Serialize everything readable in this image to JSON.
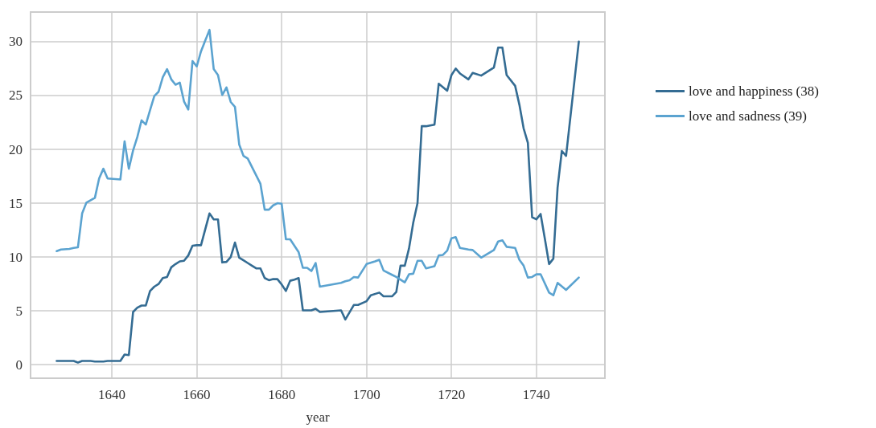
{
  "chart_data": {
    "type": "line",
    "xlabel": "year",
    "xlim": [
      1620.85,
      1756.15
    ],
    "xticks": [
      1640,
      1660,
      1680,
      1700,
      1720,
      1740
    ],
    "ylim": [
      -1.25,
      32.75
    ],
    "yticks": [
      0,
      5,
      10,
      15,
      20,
      25,
      30
    ],
    "grid": true,
    "legend": "top right",
    "line_style": "solid",
    "marker": "none",
    "series": [
      {
        "name": "love and happiness (38)",
        "color": "#346c93",
        "x": [
          1627,
          1631,
          1632,
          1633,
          1635,
          1636,
          1638,
          1639,
          1642,
          1643,
          1644,
          1645,
          1646,
          1647,
          1648,
          1649,
          1650,
          1651,
          1652,
          1653,
          1654,
          1655,
          1656,
          1657,
          1658,
          1659,
          1660,
          1661,
          1663,
          1664,
          1665,
          1666,
          1667,
          1668,
          1669,
          1670,
          1671,
          1672,
          1673,
          1674,
          1675,
          1676,
          1677,
          1678,
          1679,
          1680,
          1681,
          1682,
          1683,
          1684,
          1685,
          1686,
          1687,
          1688,
          1689,
          1694,
          1695,
          1697,
          1698,
          1700,
          1701,
          1703,
          1704,
          1706,
          1707,
          1708,
          1709,
          1710,
          1711,
          1712,
          1713,
          1714,
          1716,
          1717,
          1719,
          1720,
          1721,
          1722,
          1724,
          1725,
          1727,
          1730,
          1731,
          1732,
          1733,
          1735,
          1736,
          1737,
          1738,
          1739,
          1740,
          1741,
          1742,
          1743,
          1744,
          1745,
          1746,
          1747,
          1750
        ],
        "values": [
          0.35,
          0.35,
          0.2,
          0.35,
          0.35,
          0.3,
          0.3,
          0.35,
          0.35,
          0.95,
          0.9,
          4.9,
          5.3,
          5.5,
          5.5,
          6.85,
          7.25,
          7.5,
          8.05,
          8.15,
          9.05,
          9.35,
          9.6,
          9.65,
          10.15,
          11.05,
          11.1,
          11.1,
          14.05,
          13.5,
          13.5,
          9.5,
          9.55,
          10.0,
          11.35,
          9.95,
          9.7,
          9.45,
          9.2,
          8.95,
          8.95,
          8.05,
          7.85,
          7.95,
          7.95,
          7.45,
          6.85,
          7.8,
          7.9,
          8.05,
          5.05,
          5.05,
          5.05,
          5.2,
          4.9,
          5.05,
          4.2,
          5.55,
          5.55,
          5.9,
          6.45,
          6.7,
          6.35,
          6.35,
          6.75,
          9.2,
          9.2,
          10.8,
          13.2,
          15.0,
          22.15,
          22.15,
          22.3,
          26.1,
          25.45,
          26.9,
          27.5,
          27.05,
          26.5,
          27.1,
          26.85,
          27.6,
          29.45,
          29.45,
          26.9,
          25.9,
          24.15,
          21.95,
          20.6,
          13.7,
          13.5,
          14.0,
          11.7,
          9.35,
          9.85,
          16.45,
          19.85,
          19.4,
          30.0
        ]
      },
      {
        "name": "love and sadness (39)",
        "color": "#5ba3d0",
        "x": [
          1627,
          1628,
          1630,
          1631,
          1632,
          1633,
          1634,
          1636,
          1637,
          1638,
          1639,
          1642,
          1643,
          1644,
          1645,
          1646,
          1647,
          1648,
          1649,
          1650,
          1651,
          1652,
          1653,
          1654,
          1655,
          1656,
          1657,
          1658,
          1659,
          1660,
          1661,
          1663,
          1664,
          1665,
          1666,
          1667,
          1668,
          1669,
          1670,
          1671,
          1672,
          1675,
          1676,
          1677,
          1678,
          1679,
          1680,
          1681,
          1682,
          1684,
          1685,
          1686,
          1687,
          1688,
          1689,
          1694,
          1695,
          1696,
          1697,
          1698,
          1700,
          1702,
          1703,
          1704,
          1706,
          1707,
          1709,
          1710,
          1711,
          1712,
          1713,
          1714,
          1716,
          1717,
          1718,
          1719,
          1720,
          1721,
          1722,
          1724,
          1725,
          1727,
          1730,
          1731,
          1732,
          1733,
          1735,
          1736,
          1737,
          1738,
          1739,
          1740,
          1741,
          1743,
          1744,
          1745,
          1747,
          1750
        ],
        "values": [
          10.55,
          10.7,
          10.75,
          10.85,
          10.9,
          14.05,
          15.05,
          15.5,
          17.3,
          18.2,
          17.3,
          17.2,
          20.75,
          18.2,
          19.9,
          21.15,
          22.7,
          22.3,
          23.65,
          24.95,
          25.35,
          26.7,
          27.45,
          26.5,
          26.0,
          26.2,
          24.45,
          23.7,
          28.2,
          27.7,
          29.1,
          31.1,
          27.45,
          26.9,
          25.05,
          25.75,
          24.4,
          23.95,
          20.45,
          19.4,
          19.15,
          16.8,
          14.4,
          14.4,
          14.8,
          15.0,
          14.95,
          11.65,
          11.65,
          10.45,
          9.0,
          9.0,
          8.7,
          9.45,
          7.25,
          7.6,
          7.75,
          7.85,
          8.15,
          8.1,
          9.35,
          9.6,
          9.75,
          8.75,
          8.35,
          8.15,
          7.65,
          8.4,
          8.45,
          9.65,
          9.65,
          8.95,
          9.15,
          10.15,
          10.2,
          10.6,
          11.75,
          11.85,
          10.85,
          10.7,
          10.65,
          9.95,
          10.65,
          11.45,
          11.55,
          10.95,
          10.85,
          9.75,
          9.2,
          8.1,
          8.15,
          8.4,
          8.4,
          6.7,
          6.45,
          7.6,
          6.95,
          8.1
        ]
      }
    ]
  }
}
